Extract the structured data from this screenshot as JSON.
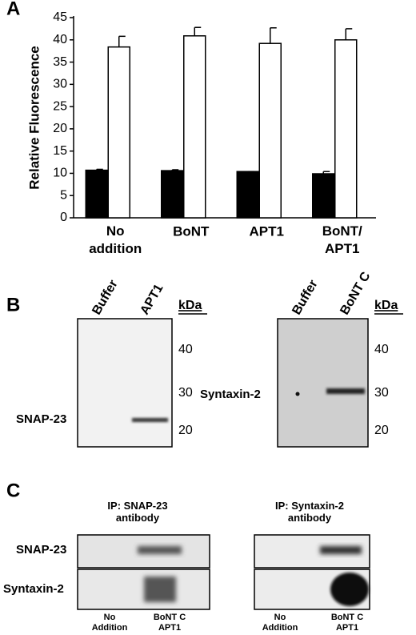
{
  "chart_data": {
    "type": "bar",
    "panel_label": "A",
    "ylabel": "Relative Fluorescence",
    "categories": [
      "No addition",
      "BoNT",
      "APT1",
      "BoNT/ APT1"
    ],
    "series": [
      {
        "color": "#000000",
        "values": [
          10.7,
          10.6,
          10.4,
          9.9
        ],
        "errors": [
          0.2,
          0.2,
          0,
          0.5
        ]
      },
      {
        "color": "#ffffff",
        "values": [
          38.4,
          40.9,
          39.2,
          40.0
        ],
        "errors": [
          2.4,
          1.9,
          3.5,
          2.5
        ]
      }
    ],
    "ylim": [
      0,
      45
    ],
    "yticks": [
      0,
      5,
      10,
      15,
      20,
      25,
      30,
      35,
      40,
      45
    ]
  },
  "panel_b": {
    "label": "B",
    "blots": [
      {
        "lanes": [
          "Buffer",
          "APT1"
        ],
        "unit": "kDa",
        "markers": [
          "40",
          "30",
          "20"
        ],
        "band_label": "SNAP-23"
      },
      {
        "lanes": [
          "Buffer",
          "BoNT C"
        ],
        "unit": "kDa",
        "markers": [
          "40",
          "30",
          "20"
        ],
        "band_label": "Syntaxin-2"
      }
    ]
  },
  "panel_c": {
    "label": "C",
    "rows": [
      "SNAP-23",
      "Syntaxin-2"
    ],
    "columns": [
      {
        "title": "IP: SNAP-23 antibody",
        "lanes": [
          "No Addition",
          "BoNT C APT1"
        ]
      },
      {
        "title": "IP: Syntaxin-2 antibody",
        "lanes": [
          "No Addition",
          "BoNT C APT1"
        ]
      }
    ]
  }
}
